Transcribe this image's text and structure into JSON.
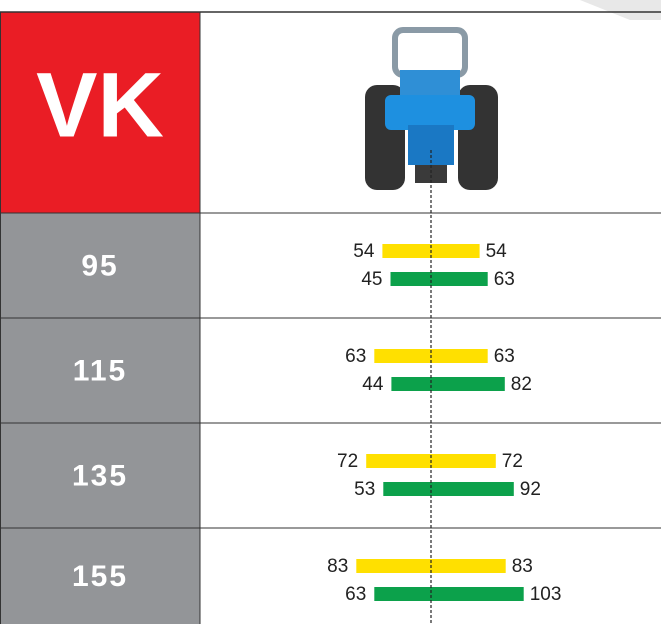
{
  "header": {
    "title": "VK"
  },
  "rows": [
    {
      "label": "95",
      "yellow": [
        54,
        54
      ],
      "green": [
        45,
        63
      ]
    },
    {
      "label": "115",
      "yellow": [
        63,
        63
      ],
      "green": [
        44,
        82
      ]
    },
    {
      "label": "135",
      "yellow": [
        72,
        72
      ],
      "green": [
        53,
        92
      ]
    },
    {
      "label": "155",
      "yellow": [
        83,
        83
      ],
      "green": [
        63,
        103
      ]
    }
  ]
}
